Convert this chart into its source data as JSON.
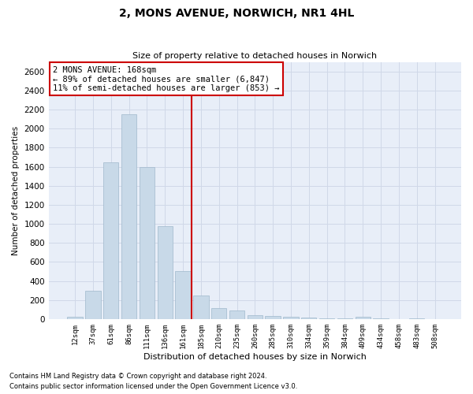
{
  "title1": "2, MONS AVENUE, NORWICH, NR1 4HL",
  "title2": "Size of property relative to detached houses in Norwich",
  "xlabel": "Distribution of detached houses by size in Norwich",
  "ylabel": "Number of detached properties",
  "categories": [
    "12sqm",
    "37sqm",
    "61sqm",
    "86sqm",
    "111sqm",
    "136sqm",
    "161sqm",
    "185sqm",
    "210sqm",
    "235sqm",
    "260sqm",
    "285sqm",
    "310sqm",
    "334sqm",
    "359sqm",
    "384sqm",
    "409sqm",
    "434sqm",
    "458sqm",
    "483sqm",
    "508sqm"
  ],
  "values": [
    25,
    300,
    1650,
    2150,
    1600,
    975,
    500,
    250,
    115,
    90,
    40,
    32,
    20,
    15,
    10,
    5,
    20,
    5,
    0,
    10,
    0
  ],
  "bar_color": "#c8d9e8",
  "bar_edgecolor": "#a0b8cc",
  "vline_x": 6.5,
  "vline_color": "#cc0000",
  "annotation_line1": "2 MONS AVENUE: 168sqm",
  "annotation_line2": "← 89% of detached houses are smaller (6,847)",
  "annotation_line3": "11% of semi-detached houses are larger (853) →",
  "annotation_box_color": "#ffffff",
  "annotation_box_edgecolor": "#cc0000",
  "ylim": [
    0,
    2700
  ],
  "yticks": [
    0,
    200,
    400,
    600,
    800,
    1000,
    1200,
    1400,
    1600,
    1800,
    2000,
    2200,
    2400,
    2600
  ],
  "grid_color": "#d0d8e8",
  "bg_color": "#e8eef8",
  "footnote1": "Contains HM Land Registry data © Crown copyright and database right 2024.",
  "footnote2": "Contains public sector information licensed under the Open Government Licence v3.0."
}
